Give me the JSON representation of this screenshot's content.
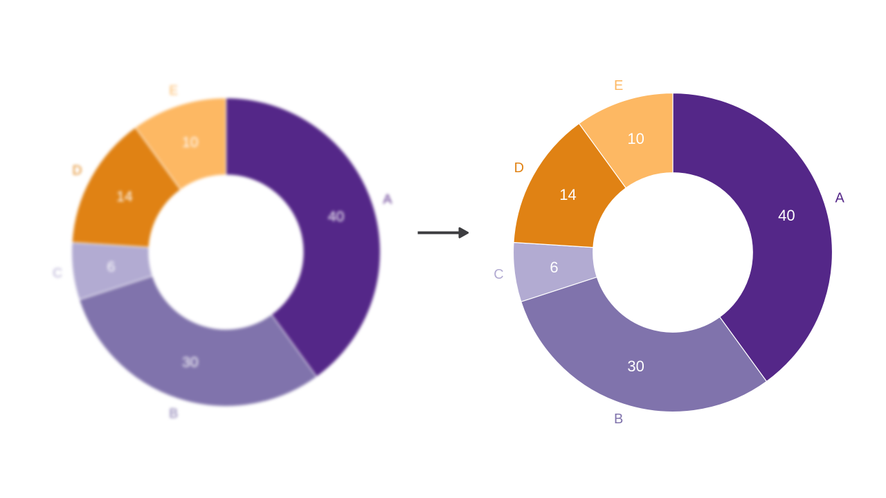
{
  "figure": {
    "description": "Before-and-after comparison: blurred donut chart on the left, sharp identical donut chart on the right, joined by a rightward arrow.",
    "background_color": "#ffffff",
    "arrow": {
      "color": "#3d3d40",
      "direction": "right"
    },
    "left_panel": {
      "style": "blurred"
    },
    "right_panel": {
      "style": "sharp"
    }
  },
  "chart_data": {
    "type": "pie",
    "subtype": "donut",
    "categories": [
      "A",
      "B",
      "C",
      "D",
      "E"
    ],
    "values": [
      40,
      30,
      6,
      14,
      10
    ],
    "slice_colors": [
      "#542788",
      "#8073ac",
      "#b2abd2",
      "#e08214",
      "#fdb863"
    ],
    "label_colors": [
      "#542788",
      "#8073ac",
      "#b2abd2",
      "#e08214",
      "#fdb863"
    ],
    "value_label_color": "#ffffff",
    "start_angle_deg": 90,
    "direction": "clockwise",
    "inner_radius_ratio": 0.5,
    "label_distance_ratio": 1.1,
    "value_distance_ratio": 0.75,
    "edge_color": "#ffffff",
    "title": "",
    "legend": "none",
    "value_labels": [
      "40",
      "30",
      "6",
      "14",
      "10"
    ]
  }
}
